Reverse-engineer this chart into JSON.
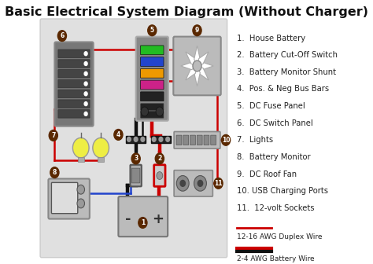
{
  "title": "Basic Electrical System Diagram (Without Charger)",
  "title_fontsize": 11.5,
  "bg_color": "#ffffff",
  "diagram_bg": "#e8e8e8",
  "legend_items": [
    "1.  House Battery",
    "2.  Battery Cut-Off Switch",
    "3.  Battery Monitor Shunt",
    "4.  Pos. & Neg Bus Bars",
    "5.  DC Fuse Panel",
    "6.  DC Switch Panel",
    "7.  Lights",
    "8.  Battery Monitor",
    "9.  DC Roof Fan",
    "10. USB Charging Ports",
    "11.  12-volt Sockets"
  ],
  "number_bg_color": "#5a2800",
  "number_text_color": "#ffffff",
  "red_wire": "#cc0000",
  "black_wire": "#111111",
  "blue_wire": "#2244cc",
  "comp_gray": "#888888",
  "comp_light": "#bbbbbb",
  "comp_dark": "#555555",
  "comp_mid": "#999999",
  "fuse_colors": [
    "#22bb22",
    "#2244cc",
    "#ee9900",
    "#cc2288",
    "#222222"
  ],
  "switch_dark": "#3a3a3a",
  "switch_light": "#cccccc"
}
